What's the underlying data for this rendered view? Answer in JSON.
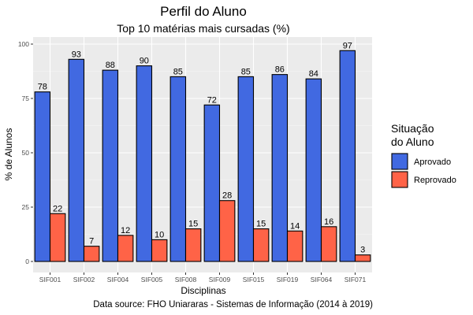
{
  "chart_data": {
    "type": "bar",
    "title": "Perfil do Aluno",
    "subtitle": "Top 10 matérias mais cursadas (%)",
    "xlabel": "Disciplinas",
    "ylabel": "% de Alunos",
    "caption": "Data source: FHO Uniararas - Sistemas de Informação (2014 à 2019)",
    "categories": [
      "SIF001",
      "SIF002",
      "SIF004",
      "SIF005",
      "SIF008",
      "SIF009",
      "SIF015",
      "SIF019",
      "SIF064",
      "SIF071"
    ],
    "series": [
      {
        "name": "Aprovado",
        "color": "#4169E1",
        "values": [
          78,
          93,
          88,
          90,
          85,
          72,
          85,
          86,
          84,
          97
        ]
      },
      {
        "name": "Reprovado",
        "color": "#FF6347",
        "values": [
          22,
          7,
          12,
          10,
          15,
          28,
          15,
          14,
          16,
          3
        ]
      }
    ],
    "ylim": [
      0,
      100
    ],
    "yticks": [
      0,
      25,
      50,
      75,
      100
    ],
    "legend": {
      "title_line1": "Situação",
      "title_line2": "do Aluno",
      "position": "right"
    },
    "grid": true,
    "panel_background": "#EBEBEB"
  }
}
